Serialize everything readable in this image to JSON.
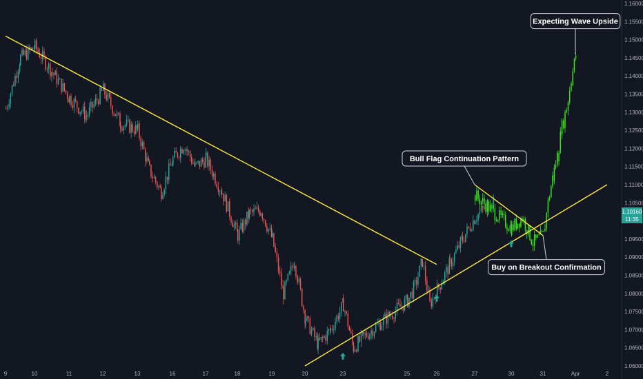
{
  "colors": {
    "background": "#131722",
    "up_candle": "#26a69a",
    "down_candle": "#ef5350",
    "projection": "#39e61b",
    "trendline": "#ffeb3b",
    "arrow": "#26a69a",
    "price_badge": "#26a69a"
  },
  "chart_data": {
    "type": "candlestick",
    "title": "",
    "xlabel": "",
    "ylabel": "",
    "ylim": [
      1.06,
      1.16
    ],
    "grid": false,
    "x_tick_labels": [
      "9",
      "10",
      "11",
      "12",
      "13",
      "16",
      "17",
      "18",
      "19",
      "20",
      "23",
      "25",
      "26",
      "27",
      "30",
      "31",
      "Apr",
      "2"
    ],
    "y_tick_labels": [
      "1.16000",
      "1.15500",
      "1.15000",
      "1.14500",
      "1.14000",
      "1.13500",
      "1.13000",
      "1.12500",
      "1.12000",
      "1.11500",
      "1.11000",
      "1.10500",
      "1.10000",
      "1.09500",
      "1.09000",
      "1.08500",
      "1.08000",
      "1.07500",
      "1.07000",
      "1.06500",
      "1.06000"
    ],
    "price_badge": {
      "price": "1.10160",
      "countdown": "11:35"
    },
    "history_path": [
      [
        "9",
        1.131
      ],
      [
        "9",
        1.145
      ],
      [
        "10",
        1.148
      ],
      [
        "10",
        1.141
      ],
      [
        "11",
        1.134
      ],
      [
        "11",
        1.129
      ],
      [
        "12",
        1.136
      ],
      [
        "12",
        1.127
      ],
      [
        "13",
        1.125
      ],
      [
        "13",
        1.114
      ],
      [
        "13",
        1.108
      ],
      [
        "16",
        1.117
      ],
      [
        "16",
        1.121
      ],
      [
        "16",
        1.115
      ],
      [
        "17",
        1.117
      ],
      [
        "17",
        1.108
      ],
      [
        "18",
        1.096
      ],
      [
        "18",
        1.102
      ],
      [
        "18",
        1.103
      ],
      [
        "19",
        1.095
      ],
      [
        "19",
        1.08
      ],
      [
        "19",
        1.089
      ],
      [
        "20",
        1.073
      ],
      [
        "20",
        1.066
      ],
      [
        "20",
        1.07
      ],
      [
        "23",
        1.077
      ],
      [
        "23",
        1.065
      ],
      [
        "23",
        1.068
      ],
      [
        "25",
        1.078
      ],
      [
        "25",
        1.082
      ],
      [
        "25",
        1.089
      ],
      [
        "25",
        1.077
      ],
      [
        "26",
        1.081
      ],
      [
        "26",
        1.088
      ],
      [
        "26",
        1.095
      ],
      [
        "27",
        1.101
      ],
      [
        "27",
        1.106
      ]
    ],
    "projection_path": [
      [
        "27",
        1.107
      ],
      [
        "30",
        1.098
      ],
      [
        "30",
        1.101
      ],
      [
        "30",
        1.094
      ],
      [
        "31",
        1.096
      ],
      [
        "31",
        1.105
      ],
      [
        "31",
        1.112
      ],
      [
        "31",
        1.118
      ],
      [
        "31",
        1.126
      ],
      [
        "31",
        1.131
      ],
      [
        "31",
        1.139
      ],
      [
        "Apr",
        1.146
      ]
    ],
    "trendlines": [
      {
        "id": "major-resistance",
        "from": [
          "9",
          1.151
        ],
        "to": [
          "26",
          1.088
        ]
      },
      {
        "id": "support",
        "from": [
          "20",
          1.06
        ],
        "to": [
          "2",
          1.11
        ]
      },
      {
        "id": "flag-upper",
        "from": [
          "27",
          1.11
        ],
        "to": [
          "31",
          1.096
        ]
      }
    ],
    "annotations": [
      {
        "text": "Expecting Wave Upside",
        "anchor": [
          "Apr",
          1.146
        ]
      },
      {
        "text": "Bull Flag Continuation Pattern",
        "anchor": [
          "27",
          1.11
        ]
      },
      {
        "text": "Buy on Breakout Confirmation",
        "anchor": [
          "31",
          1.096
        ]
      }
    ],
    "arrows": [
      [
        "23",
        1.0625
      ],
      [
        "26",
        1.0785
      ],
      [
        "30",
        1.0935
      ]
    ]
  }
}
